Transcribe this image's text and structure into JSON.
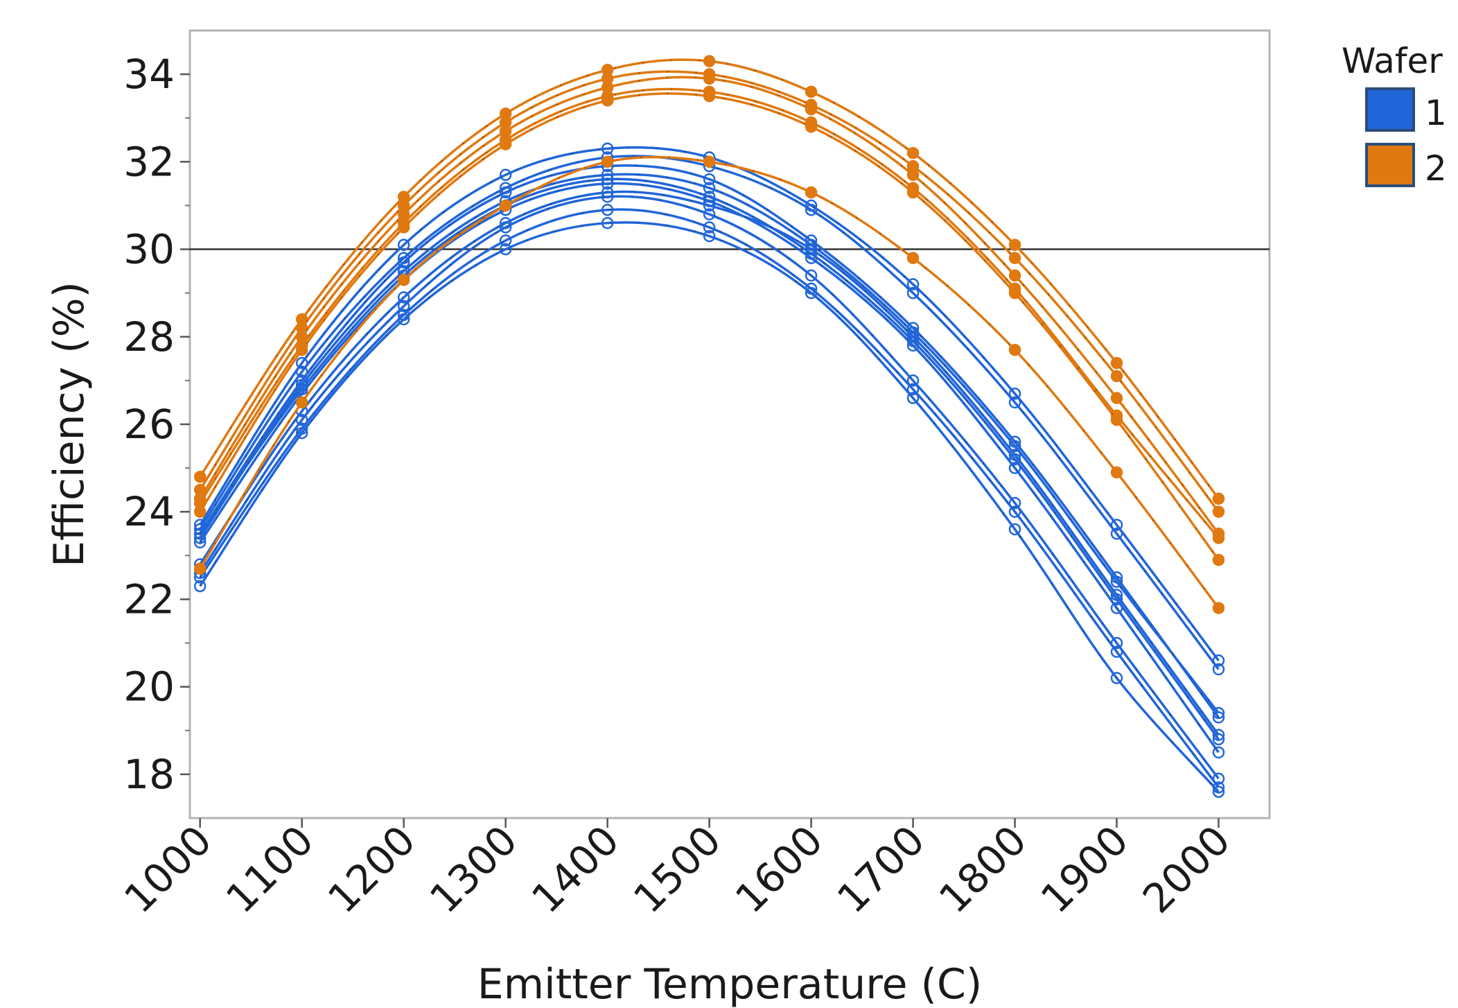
{
  "chart_data": {
    "type": "line",
    "xlabel": "Emitter Temperature (C)",
    "ylabel": "Efficiency (%)",
    "x": [
      1000,
      1100,
      1200,
      1300,
      1400,
      1500,
      1600,
      1700,
      1800,
      1900,
      2000
    ],
    "x_tick_labels": [
      "1000",
      "1100",
      "1200",
      "1300",
      "1400",
      "1500",
      "1600",
      "1700",
      "1800",
      "1900",
      "2000"
    ],
    "y_ticks": [
      18,
      20,
      22,
      24,
      26,
      28,
      30,
      32,
      34
    ],
    "y_tick_labels": [
      "18",
      "20",
      "22",
      "24",
      "26",
      "28",
      "30",
      "32",
      "34"
    ],
    "xlim": [
      990,
      2050
    ],
    "ylim": [
      17.0,
      35.0
    ],
    "reference_line": {
      "y": 30
    },
    "grid": false,
    "legend": {
      "title": "Wafer",
      "position": "right",
      "entries": [
        {
          "label": "1",
          "color": "#2166d9"
        },
        {
          "label": "2",
          "color": "#e07910"
        }
      ]
    },
    "series_groups": [
      {
        "group": "1",
        "color": "#2166d9",
        "marker": "open-circle",
        "lines": [
          [
            23.7,
            27.4,
            30.1,
            31.7,
            32.3,
            32.1,
            31.0,
            29.2,
            26.7,
            23.7,
            20.6
          ],
          [
            23.6,
            27.2,
            29.8,
            31.4,
            32.1,
            31.9,
            30.9,
            29.0,
            26.5,
            23.5,
            20.4
          ],
          [
            23.5,
            27.0,
            29.7,
            31.3,
            31.9,
            31.6,
            30.2,
            28.2,
            25.6,
            22.5,
            19.3
          ],
          [
            23.4,
            26.9,
            29.5,
            31.1,
            31.7,
            31.4,
            30.1,
            28.1,
            25.5,
            22.4,
            19.4
          ],
          [
            23.5,
            26.8,
            29.4,
            31.0,
            31.6,
            31.2,
            29.9,
            27.9,
            25.2,
            22.0,
            18.8
          ],
          [
            23.3,
            26.7,
            29.3,
            30.9,
            31.5,
            31.1,
            29.8,
            27.8,
            25.0,
            21.8,
            18.5
          ],
          [
            22.8,
            26.3,
            28.9,
            30.6,
            31.3,
            31.0,
            30.0,
            28.0,
            25.3,
            22.1,
            18.9
          ],
          [
            22.6,
            26.1,
            28.7,
            30.5,
            31.2,
            30.8,
            29.4,
            27.0,
            24.2,
            21.0,
            17.9
          ],
          [
            22.5,
            25.9,
            28.5,
            30.2,
            30.9,
            30.5,
            29.1,
            26.8,
            24.0,
            20.8,
            17.7
          ],
          [
            22.3,
            25.8,
            28.4,
            30.0,
            30.6,
            30.3,
            29.0,
            26.6,
            23.6,
            20.2,
            17.6
          ]
        ]
      },
      {
        "group": "2",
        "color": "#e07910",
        "marker": "filled-circle",
        "lines": [
          [
            24.8,
            28.4,
            31.2,
            33.1,
            34.1,
            34.3,
            33.6,
            32.2,
            30.1,
            27.4,
            24.3
          ],
          [
            24.5,
            28.2,
            31.0,
            32.9,
            33.9,
            34.0,
            33.3,
            31.9,
            29.8,
            27.1,
            24.0
          ],
          [
            24.3,
            28.0,
            30.8,
            32.7,
            33.7,
            33.9,
            33.2,
            31.7,
            29.4,
            26.6,
            23.5
          ],
          [
            24.2,
            27.8,
            30.6,
            32.5,
            33.5,
            33.6,
            32.9,
            31.4,
            29.1,
            26.2,
            23.4
          ],
          [
            24.0,
            27.7,
            30.5,
            32.4,
            33.4,
            33.5,
            32.8,
            31.3,
            29.0,
            26.1,
            22.9
          ],
          [
            22.7,
            26.5,
            29.3,
            31.0,
            32.0,
            32.0,
            31.3,
            29.8,
            27.7,
            24.9,
            21.8
          ]
        ]
      }
    ]
  }
}
